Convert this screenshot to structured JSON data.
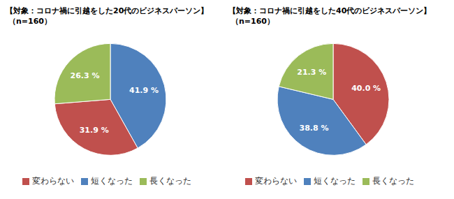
{
  "chart_data": [
    {
      "type": "pie",
      "title": "【対象：コロナ禍に引越をした20代のビジネスパーソン】",
      "subtitle": "（n=160）",
      "categories": [
        "短くなった",
        "変わらない",
        "長くなった"
      ],
      "values": [
        41.9,
        31.9,
        26.3
      ],
      "value_labels": [
        "41.9 %",
        "31.9 %",
        "26.3 %"
      ],
      "colors": [
        "#4f81bd",
        "#c0504d",
        "#9bbb59"
      ],
      "data_labels": true,
      "legend": "bottom"
    },
    {
      "type": "pie",
      "title": "【対象：コロナ禍に引越をした40代のビジネスパーソン】",
      "subtitle": "（n=160）",
      "categories": [
        "変わらない",
        "短くなった",
        "長くなった"
      ],
      "values": [
        40.0,
        38.8,
        21.3
      ],
      "value_labels": [
        "40.0 %",
        "38.8 %",
        "21.3 %"
      ],
      "colors": [
        "#c0504d",
        "#4f81bd",
        "#9bbb59"
      ],
      "data_labels": true,
      "legend": "bottom"
    }
  ]
}
